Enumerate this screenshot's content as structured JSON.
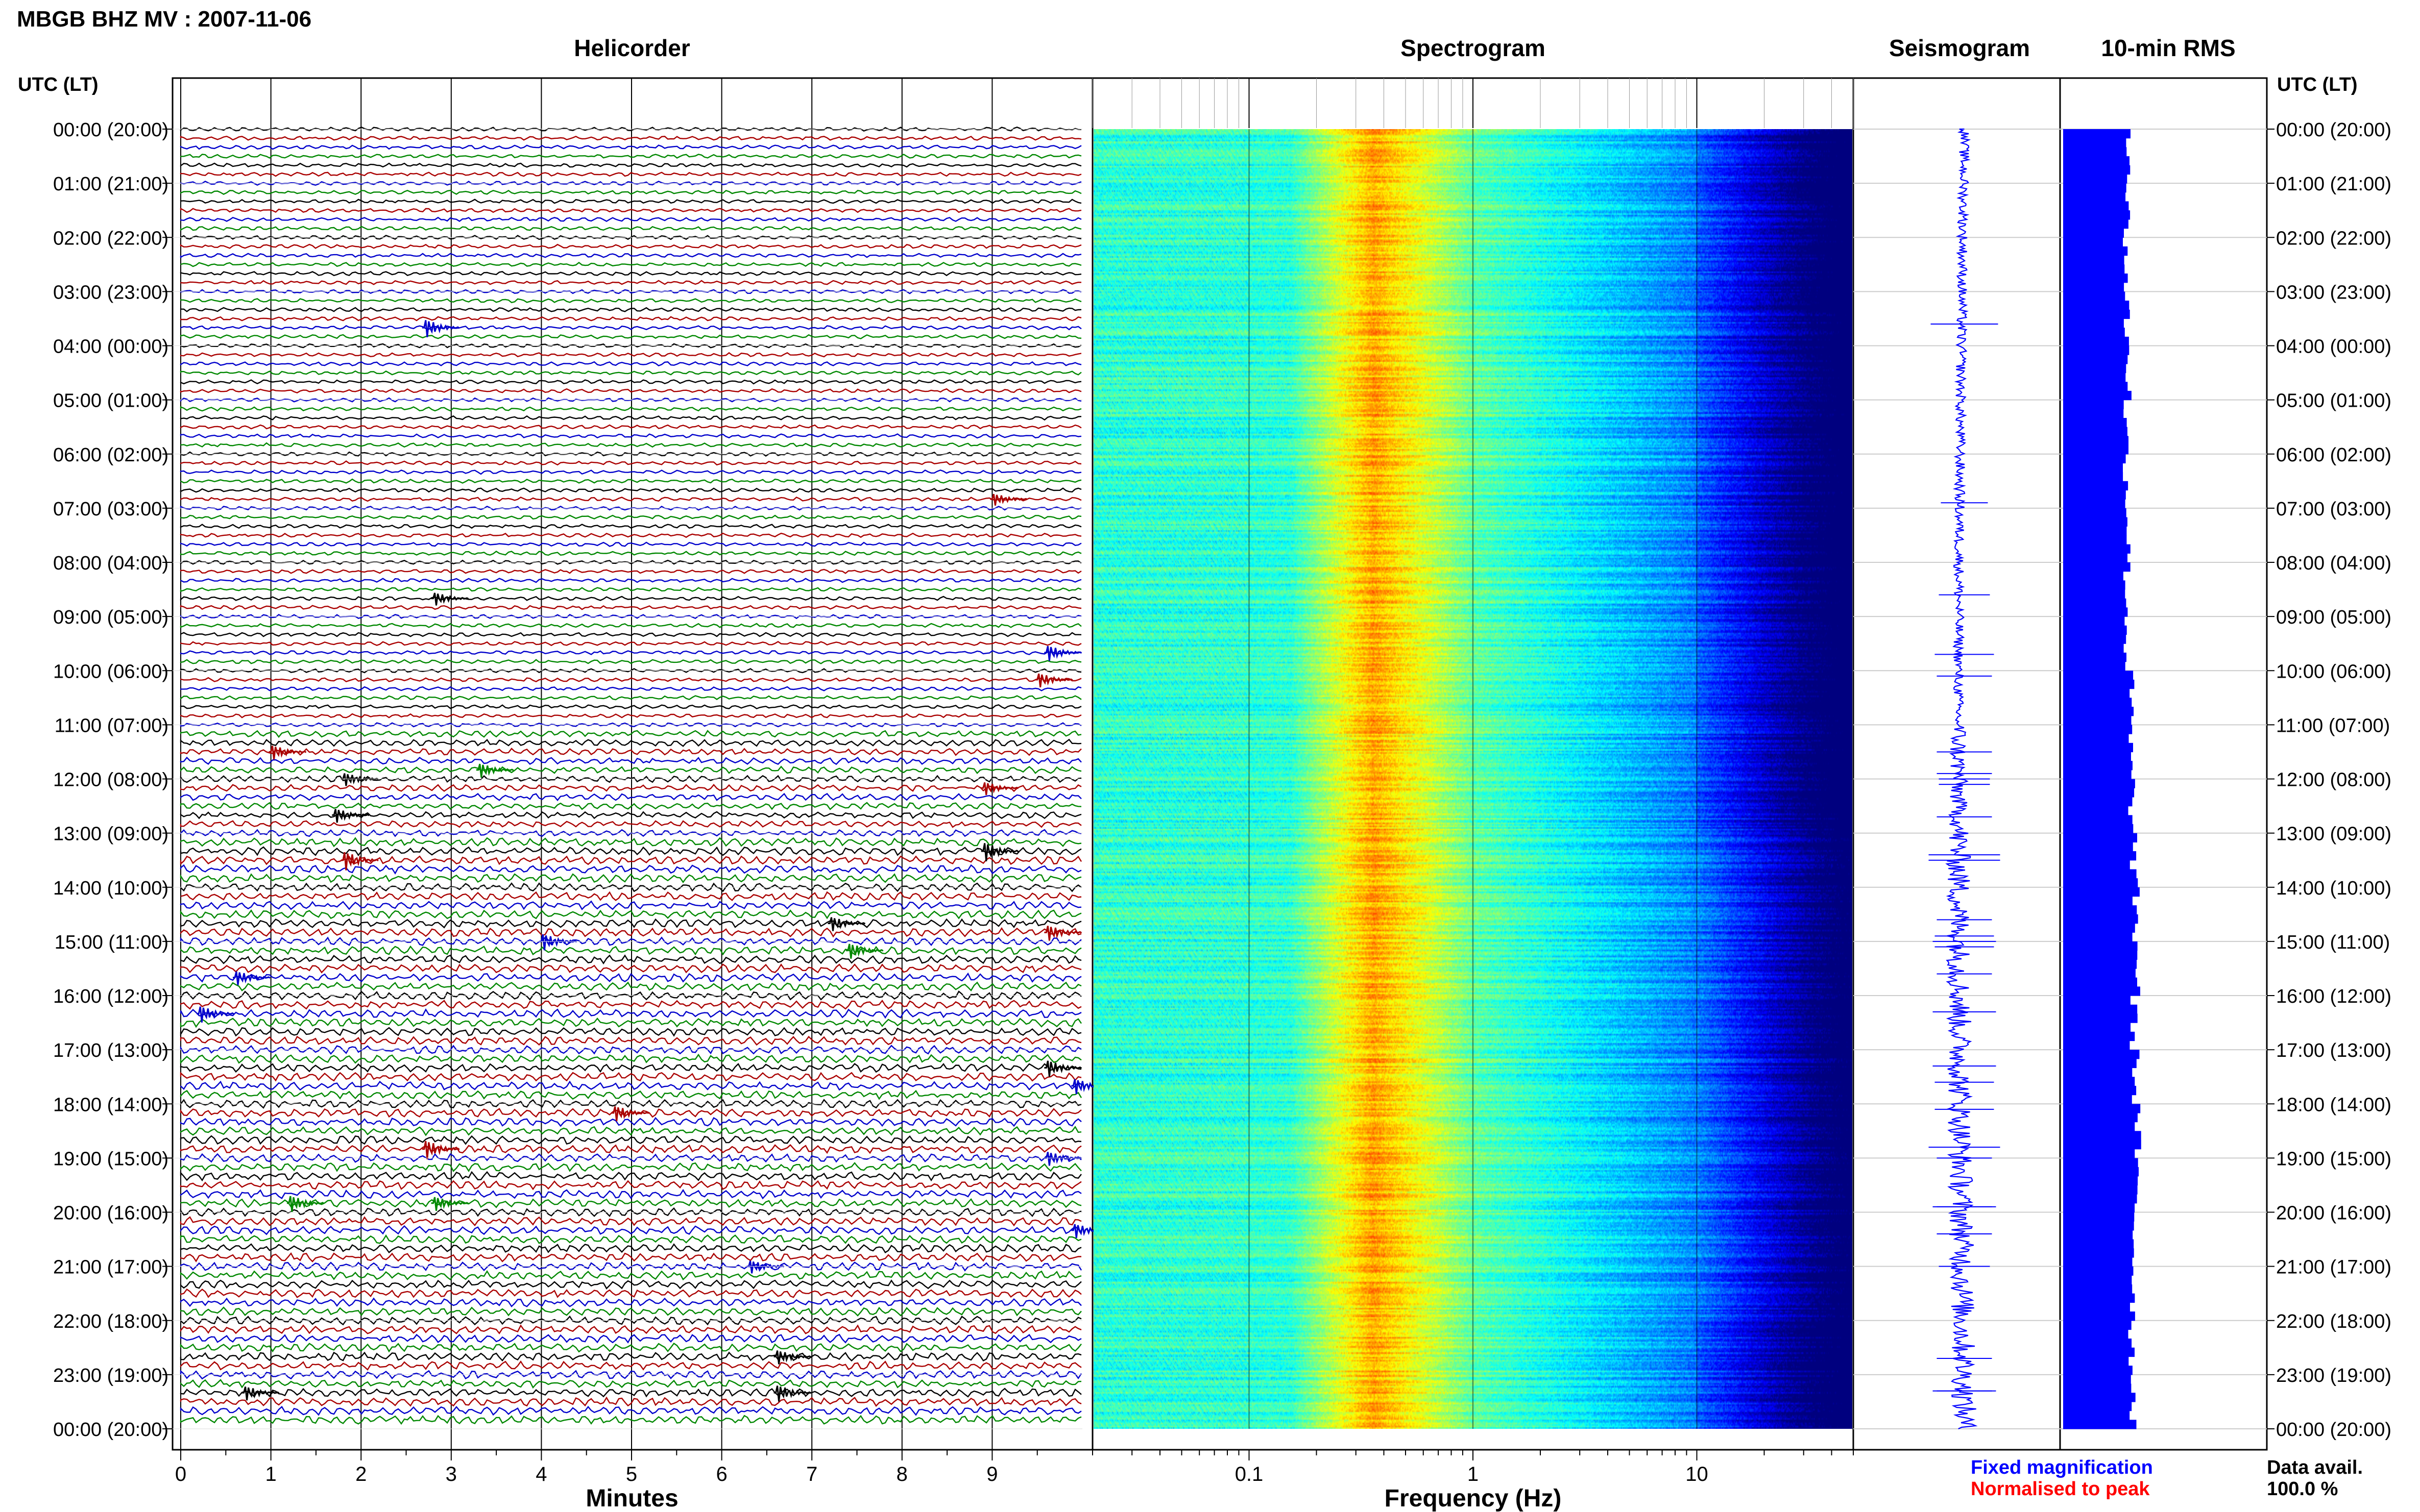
{
  "header": {
    "title": "MBGB BHZ MV : 2007-11-06"
  },
  "axes": {
    "time_label_left": "UTC (LT)",
    "time_label_right": "UTC (LT)",
    "hour_labels": [
      "00:00 (20:00)",
      "01:00 (21:00)",
      "02:00 (22:00)",
      "03:00 (23:00)",
      "04:00 (00:00)",
      "05:00 (01:00)",
      "06:00 (02:00)",
      "07:00 (03:00)",
      "08:00 (04:00)",
      "09:00 (05:00)",
      "10:00 (06:00)",
      "11:00 (07:00)",
      "12:00 (08:00)",
      "13:00 (09:00)",
      "14:00 (10:00)",
      "15:00 (11:00)",
      "16:00 (12:00)",
      "17:00 (13:00)",
      "18:00 (14:00)",
      "19:00 (15:00)",
      "20:00 (16:00)",
      "21:00 (17:00)",
      "22:00 (18:00)",
      "23:00 (19:00)",
      "00:00 (20:00)"
    ]
  },
  "panels": {
    "helicorder": {
      "title": "Helicorder",
      "xlabel": "Minutes",
      "ticks": [
        "0",
        "1",
        "2",
        "3",
        "4",
        "5",
        "6",
        "7",
        "8",
        "9"
      ]
    },
    "spectrogram": {
      "title": "Spectrogram",
      "xlabel": "Frequency (Hz)",
      "ticks": [
        "0.1",
        "1",
        "10"
      ]
    },
    "seismogram": {
      "title": "Seismogram"
    },
    "rms": {
      "title": "10-min RMS"
    }
  },
  "legend": {
    "fixed": "Fixed magnification",
    "normalised": "Normalised to peak",
    "fixed_color": "#0000ff",
    "normalised_color": "#ff0000"
  },
  "data_avail": {
    "label": "Data avail.",
    "value": "100.0 %"
  },
  "chart_data": [
    {
      "type": "line",
      "title": "Helicorder",
      "xlabel": "Minutes",
      "xlim": [
        0,
        10
      ],
      "ylim_hours": [
        0,
        24
      ],
      "line_interval_minutes": 10,
      "line_count": 144,
      "trace_colors": [
        "#000000",
        "#aa0000",
        "#0000cc",
        "#008800"
      ],
      "events": [
        {
          "hour": 3.6,
          "minute": 2.7,
          "amp": 0.9
        },
        {
          "hour": 6.9,
          "minute": 9.0,
          "amp": 0.4
        },
        {
          "hour": 8.6,
          "minute": 2.8,
          "amp": 0.5
        },
        {
          "hour": 9.7,
          "minute": 9.6,
          "amp": 0.7
        },
        {
          "hour": 10.1,
          "minute": 9.5,
          "amp": 0.6
        },
        {
          "hour": 11.5,
          "minute": 1.0,
          "amp": 0.6
        },
        {
          "hour": 11.9,
          "minute": 3.3,
          "amp": 0.6
        },
        {
          "hour": 12.0,
          "minute": 1.8,
          "amp": 0.5
        },
        {
          "hour": 12.1,
          "minute": 8.9,
          "amp": 0.5
        },
        {
          "hour": 12.7,
          "minute": 1.7,
          "amp": 0.6
        },
        {
          "hour": 13.5,
          "minute": 1.8,
          "amp": 1.0
        },
        {
          "hour": 13.4,
          "minute": 8.9,
          "amp": 1.0
        },
        {
          "hour": 14.6,
          "minute": 7.2,
          "amp": 0.6
        },
        {
          "hour": 14.9,
          "minute": 9.6,
          "amp": 0.7
        },
        {
          "hour": 15.0,
          "minute": 4.0,
          "amp": 0.8
        },
        {
          "hour": 15.1,
          "minute": 7.4,
          "amp": 0.7
        },
        {
          "hour": 15.6,
          "minute": 0.6,
          "amp": 0.6
        },
        {
          "hour": 16.3,
          "minute": 0.2,
          "amp": 0.8
        },
        {
          "hour": 17.3,
          "minute": 9.6,
          "amp": 0.8
        },
        {
          "hour": 17.6,
          "minute": 9.9,
          "amp": 0.7
        },
        {
          "hour": 18.1,
          "minute": 4.8,
          "amp": 0.7
        },
        {
          "hour": 18.8,
          "minute": 2.7,
          "amp": 1.0
        },
        {
          "hour": 19.0,
          "minute": 9.6,
          "amp": 0.6
        },
        {
          "hour": 19.9,
          "minute": 1.2,
          "amp": 0.8
        },
        {
          "hour": 19.9,
          "minute": 2.8,
          "amp": 0.6
        },
        {
          "hour": 20.4,
          "minute": 9.9,
          "amp": 0.6
        },
        {
          "hour": 21.0,
          "minute": 6.3,
          "amp": 0.5
        },
        {
          "hour": 22.7,
          "minute": 6.6,
          "amp": 0.6
        },
        {
          "hour": 23.3,
          "minute": 0.7,
          "amp": 0.6
        },
        {
          "hour": 23.3,
          "minute": 6.6,
          "amp": 0.8
        }
      ]
    },
    {
      "type": "heatmap",
      "title": "Spectrogram",
      "xlabel": "Frequency (Hz)",
      "x_scale": "log",
      "xlim_hz": [
        0.02,
        50
      ],
      "ylim_hours": [
        0,
        24
      ],
      "peak_band_hz": [
        0.15,
        0.35
      ]
    },
    {
      "type": "line",
      "title": "Seismogram",
      "ylim_hours": [
        0,
        24
      ]
    },
    {
      "type": "bar",
      "title": "10-min RMS",
      "orientation": "horizontal",
      "ylim_hours": [
        0,
        24
      ],
      "bin_minutes": 10,
      "hourly_rms_relative": [
        0.78,
        0.74,
        0.73,
        0.74,
        0.76,
        0.73,
        0.74,
        0.76,
        0.74,
        0.74,
        0.78,
        0.78,
        0.8,
        0.82,
        0.84,
        0.86,
        0.82,
        0.84,
        0.86,
        0.84,
        0.83,
        0.82,
        0.8,
        0.82
      ],
      "color": "#0000ff"
    }
  ]
}
